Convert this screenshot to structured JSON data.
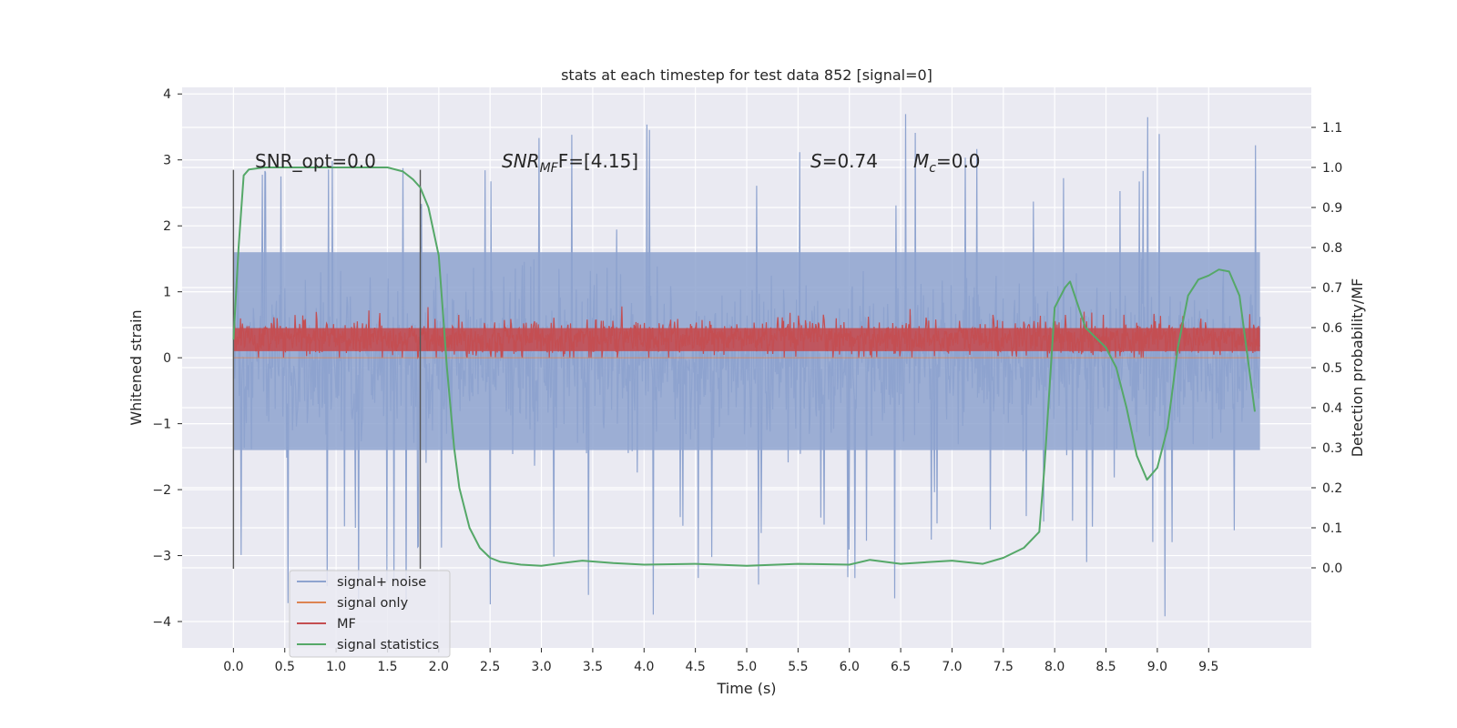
{
  "chart_data": {
    "type": "line",
    "title": "stats at each timestep for test data 852 [signal=0]",
    "xlabel": "Time (s)",
    "ylabel": "Whitened strain",
    "ylabel_right": "Detection probability/MF",
    "xlim": [
      -0.5,
      10.5
    ],
    "ylim": [
      -4.4,
      4.1
    ],
    "ylim_right": [
      -0.2,
      1.2
    ],
    "xticks": [
      0.0,
      0.5,
      1.0,
      1.5,
      2.0,
      2.5,
      3.0,
      3.5,
      4.0,
      4.5,
      5.0,
      5.5,
      6.0,
      6.5,
      7.0,
      7.5,
      8.0,
      8.5,
      9.0,
      9.5
    ],
    "xtick_labels": [
      "0.0",
      "0.5",
      "1.0",
      "1.5",
      "2.0",
      "2.5",
      "3.0",
      "3.5",
      "4.0",
      "4.5",
      "5.0",
      "5.5",
      "6.0",
      "6.5",
      "7.0",
      "7.5",
      "8.0",
      "8.5",
      "9.0",
      "9.5"
    ],
    "yticks": [
      4,
      3,
      2,
      1,
      0,
      -1,
      -2,
      -3,
      -4
    ],
    "ytick_labels": [
      "4",
      "3",
      "2",
      "1",
      "0",
      "−1",
      "−2",
      "−3",
      "−4"
    ],
    "yticks_right": [
      1.1,
      1.0,
      0.9,
      0.8,
      0.7,
      0.6,
      0.5,
      0.4,
      0.3,
      0.2,
      0.1,
      0.0
    ],
    "ytick_labels_right": [
      "1.1",
      "1.0",
      "0.9",
      "0.8",
      "0.7",
      "0.6",
      "0.5",
      "0.4",
      "0.3",
      "0.2",
      "0.1",
      "0.0"
    ],
    "grid": true,
    "legend_position": "bottom-left",
    "annotations": {
      "snr_opt": "SNR_opt=0.0",
      "snr_mf_prefix": "SNR",
      "snr_mf_sub": "MF",
      "snr_mf_rest": "F=[4.15]",
      "s_var": "S",
      "s_rest": "=0.74",
      "mc_var": "M",
      "mc_sub": "c",
      "mc_rest": "=0.0"
    },
    "marker_lines_x": [
      0.0,
      1.82
    ],
    "series": [
      {
        "name": "signal+ noise",
        "color": "#8ea3cf",
        "axis": "left",
        "x_range": [
          0.0,
          10.0
        ],
        "approx_envelope": {
          "typical_max": 1.6,
          "typical_min": -1.4,
          "peak_max": 3.7,
          "peak_min": -4.0
        }
      },
      {
        "name": "signal only",
        "color": "#dd8452",
        "axis": "left",
        "x_range": [
          0.0,
          10.0
        ],
        "values": 0.0
      },
      {
        "name": "MF",
        "color": "#c44e52",
        "axis": "left",
        "x_range": [
          0.0,
          10.0
        ],
        "approx_envelope": {
          "center": 0.3,
          "typical_max": 0.6,
          "typical_min": 0.05,
          "peak_max": 1.0
        }
      },
      {
        "name": "signal statistics",
        "color": "#55a868",
        "axis": "right",
        "x": [
          0.0,
          0.05,
          0.1,
          0.15,
          0.3,
          0.5,
          1.0,
          1.5,
          1.65,
          1.75,
          1.82,
          1.9,
          2.0,
          2.08,
          2.15,
          2.2,
          2.3,
          2.4,
          2.5,
          2.6,
          2.8,
          3.0,
          3.2,
          3.4,
          3.7,
          4.0,
          4.5,
          5.0,
          5.5,
          6.0,
          6.2,
          6.5,
          7.0,
          7.3,
          7.5,
          7.7,
          7.85,
          7.9,
          8.0,
          8.1,
          8.15,
          8.3,
          8.5,
          8.6,
          8.7,
          8.8,
          8.9,
          9.0,
          9.1,
          9.2,
          9.3,
          9.4,
          9.5,
          9.6,
          9.7,
          9.8,
          9.95
        ],
        "values": [
          0.57,
          0.8,
          0.98,
          0.995,
          1.0,
          1.0,
          1.0,
          1.0,
          0.99,
          0.97,
          0.95,
          0.9,
          0.78,
          0.5,
          0.3,
          0.2,
          0.1,
          0.05,
          0.025,
          0.015,
          0.008,
          0.005,
          0.012,
          0.018,
          0.012,
          0.008,
          0.01,
          0.005,
          0.01,
          0.008,
          0.02,
          0.01,
          0.018,
          0.01,
          0.025,
          0.05,
          0.09,
          0.25,
          0.65,
          0.7,
          0.715,
          0.6,
          0.55,
          0.5,
          0.4,
          0.28,
          0.22,
          0.25,
          0.35,
          0.55,
          0.68,
          0.72,
          0.73,
          0.745,
          0.74,
          0.68,
          0.39
        ]
      }
    ]
  }
}
